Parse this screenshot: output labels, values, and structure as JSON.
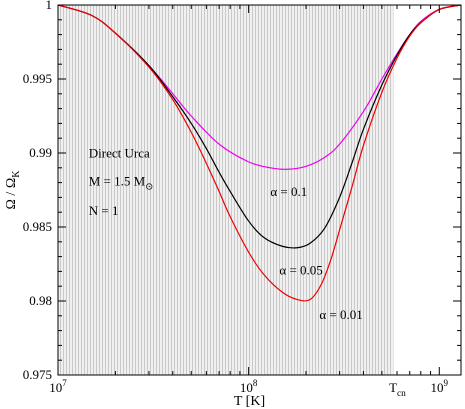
{
  "chart_data": {
    "type": "line",
    "xscale": "log",
    "xlim": [
      10000000.0,
      1300000000.0
    ],
    "ylim": [
      0.975,
      1.0
    ],
    "xlabel": "T [K]",
    "ylabel": "Ω / Ω",
    "ylabel_sub": "K",
    "grid": false,
    "x_ticks": [
      {
        "value": 10000000.0,
        "base": "10",
        "exp": "7"
      },
      {
        "value": 100000000.0,
        "base": "10",
        "exp": "8"
      },
      {
        "value": 1000000000.0,
        "base": "10",
        "exp": "9"
      }
    ],
    "y_ticks": [
      "0.975",
      "0.98",
      "0.985",
      "0.99",
      "0.995",
      "1"
    ],
    "shaded_region": {
      "from": 10000000.0,
      "to": 575000000.0
    },
    "marker_label": {
      "x": 575000000.0,
      "text": "T",
      "sub": "cn"
    },
    "annotations": [
      {
        "name": "direct-urca",
        "text": "Direct Urca",
        "sub": "",
        "x": 14500000.0,
        "y": 0.9897
      },
      {
        "name": "mass",
        "text": "M = 1.5 M",
        "sub": "⊙",
        "x": 14500000.0,
        "y": 0.9878
      },
      {
        "name": "index",
        "text": "N = 1",
        "sub": "",
        "x": 14500000.0,
        "y": 0.9858
      }
    ],
    "series": [
      {
        "name": "α = 0.1",
        "color": "#ee00ee",
        "label_at": [
          130000000.0,
          0.9871
        ],
        "x": [
          10000000.0,
          15000000.0,
          20000000.0,
          30000000.0,
          40000000.0,
          50000000.0,
          70000000.0,
          100000000.0,
          130000000.0,
          160000000.0,
          200000000.0,
          250000000.0,
          300000000.0,
          400000000.0,
          500000000.0,
          600000000.0,
          700000000.0,
          800000000.0,
          1000000000.0,
          1300000000.0
        ],
        "values": [
          1.0,
          0.9993,
          0.9981,
          0.9959,
          0.994,
          0.9925,
          0.9906,
          0.9894,
          0.989,
          0.9889,
          0.9891,
          0.9897,
          0.9906,
          0.9928,
          0.995,
          0.9967,
          0.998,
          0.9989,
          0.9997,
          1.0
        ]
      },
      {
        "name": "α = 0.05",
        "color": "#000000",
        "label_at": [
          145000000.0,
          0.9818
        ],
        "x": [
          10000000.0,
          15000000.0,
          20000000.0,
          30000000.0,
          40000000.0,
          50000000.0,
          60000000.0,
          70000000.0,
          80000000.0,
          100000000.0,
          120000000.0,
          150000000.0,
          180000000.0,
          210000000.0,
          250000000.0,
          300000000.0,
          350000000.0,
          400000000.0,
          500000000.0,
          600000000.0,
          700000000.0,
          800000000.0,
          1000000000.0,
          1300000000.0
        ],
        "values": [
          1.0,
          0.9993,
          0.9981,
          0.9959,
          0.9938,
          0.992,
          0.9903,
          0.9887,
          0.9874,
          0.9854,
          0.9843,
          0.9837,
          0.9836,
          0.9839,
          0.9849,
          0.987,
          0.9894,
          0.9916,
          0.9946,
          0.9966,
          0.998,
          0.9988,
          0.9997,
          1.0
        ]
      },
      {
        "name": "α = 0.01",
        "color": "#ee0000",
        "label_at": [
          235000000.0,
          0.9788
        ],
        "x": [
          10000000.0,
          15000000.0,
          20000000.0,
          30000000.0,
          40000000.0,
          50000000.0,
          60000000.0,
          70000000.0,
          80000000.0,
          100000000.0,
          120000000.0,
          150000000.0,
          180000000.0,
          210000000.0,
          240000000.0,
          270000000.0,
          300000000.0,
          350000000.0,
          400000000.0,
          500000000.0,
          600000000.0,
          700000000.0,
          800000000.0,
          1000000000.0,
          1300000000.0
        ],
        "values": [
          1.0,
          0.9993,
          0.9981,
          0.9958,
          0.9936,
          0.9914,
          0.9893,
          0.9874,
          0.9857,
          0.9833,
          0.9818,
          0.9806,
          0.9801,
          0.9801,
          0.9811,
          0.9828,
          0.9848,
          0.9878,
          0.9905,
          0.9941,
          0.9964,
          0.9979,
          0.9988,
          0.9997,
          1.0
        ]
      }
    ]
  }
}
